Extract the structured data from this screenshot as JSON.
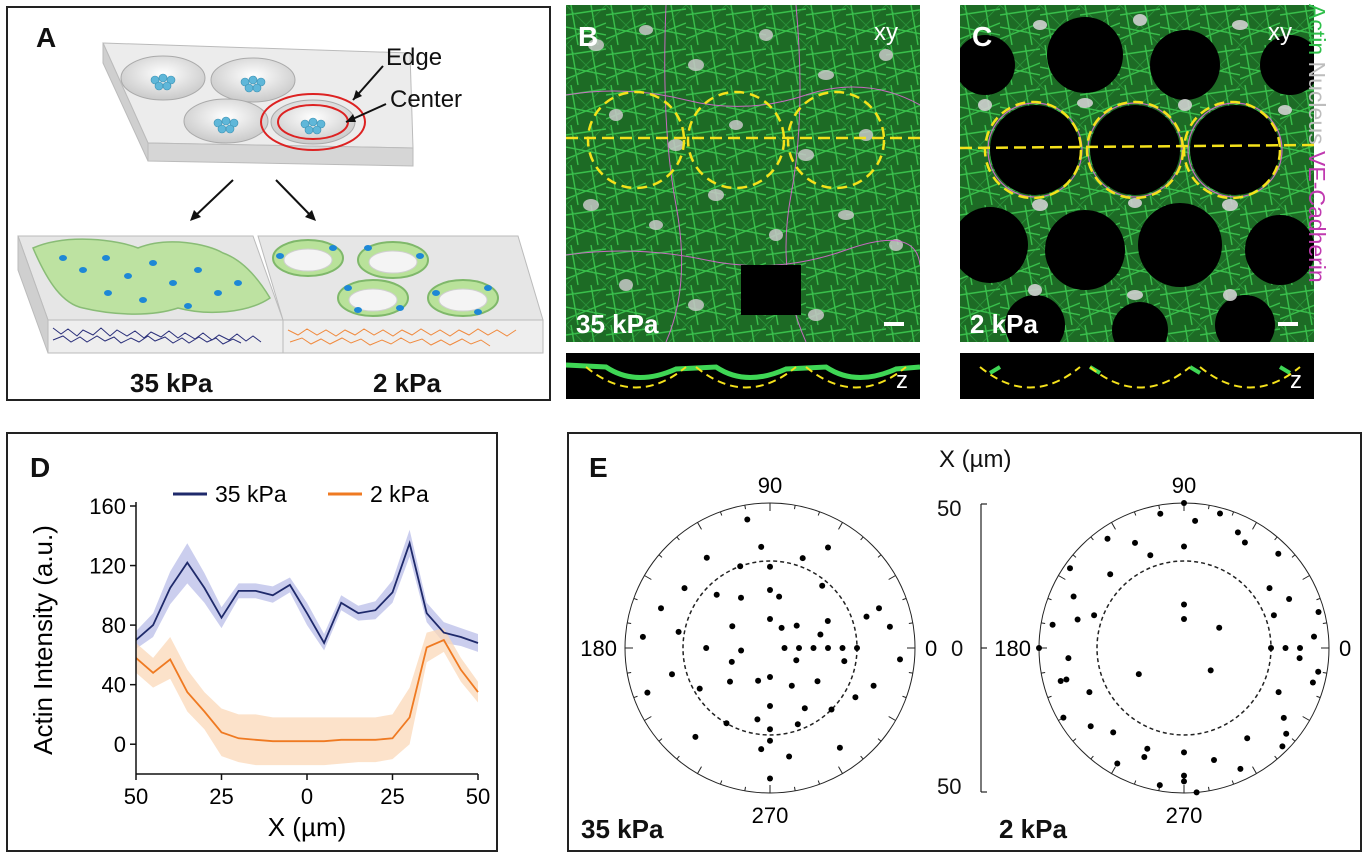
{
  "panel_a": {
    "letter": "A",
    "edge_label": "Edge",
    "center_label": "Center",
    "stiff_label": "35 kPa",
    "soft_label": "2 kPa"
  },
  "panel_b": {
    "letter": "B",
    "view_label": "xy",
    "stiffness_label": "35 kPa",
    "z_label": "z"
  },
  "panel_c": {
    "letter": "C",
    "view_label": "xy",
    "stiffness_label": "2 kPa",
    "z_label": "z"
  },
  "stain_legend": {
    "actin": "Actin",
    "nucleus": "Nucleus",
    "vecad": "VE-Cadherin",
    "actin_color": "#2fbf4a",
    "nucleus_color": "#bdbdbd",
    "vecad_color": "#c03ab0"
  },
  "panel_d": {
    "letter": "D"
  },
  "panel_e": {
    "letter": "E",
    "x_unit_label": "X (µm)",
    "left_label": "35 kPa",
    "right_label": "2 kPa",
    "scale_top": "50",
    "scale_mid": "0",
    "scale_bottom": "50"
  },
  "chart_data": [
    {
      "type": "line",
      "title": "",
      "xlabel": "X (µm)",
      "ylabel": "Actin Intensity (a.u.)",
      "x_tick_labels": [
        "50",
        "25",
        "0",
        "25",
        "50"
      ],
      "y_ticks": [
        0,
        40,
        80,
        120,
        160
      ],
      "ylim": [
        -20,
        160
      ],
      "xlim": [
        -50,
        50
      ],
      "legend": "top",
      "x": [
        -50,
        -45,
        -40,
        -35,
        -30,
        -25,
        -20,
        -15,
        -10,
        -5,
        0,
        5,
        10,
        15,
        20,
        25,
        30,
        35,
        40,
        45,
        50
      ],
      "series": [
        {
          "name": "35 kPa",
          "color": "#1f2a6b",
          "band_color": "#b9bde8",
          "values": [
            70,
            80,
            105,
            122,
            105,
            85,
            103,
            103,
            100,
            107,
            88,
            68,
            95,
            88,
            90,
            102,
            135,
            88,
            75,
            72,
            68
          ],
          "lower": [
            64,
            72,
            94,
            108,
            95,
            78,
            98,
            98,
            95,
            102,
            80,
            63,
            90,
            83,
            84,
            95,
            126,
            82,
            68,
            66,
            62
          ],
          "upper": [
            76,
            88,
            116,
            135,
            115,
            92,
            108,
            108,
            106,
            112,
            95,
            74,
            100,
            93,
            96,
            110,
            144,
            95,
            82,
            78,
            74
          ]
        },
        {
          "name": "2 kPa",
          "color": "#ef7a22",
          "band_color": "#fbd8b8",
          "values": [
            58,
            48,
            57,
            35,
            22,
            8,
            4,
            3,
            2,
            2,
            2,
            2,
            3,
            3,
            3,
            4,
            18,
            65,
            70,
            50,
            35
          ],
          "lower": [
            48,
            38,
            44,
            22,
            10,
            -8,
            -12,
            -14,
            -14,
            -14,
            -14,
            -14,
            -13,
            -12,
            -12,
            -10,
            0,
            55,
            62,
            42,
            28
          ],
          "upper": [
            68,
            58,
            72,
            50,
            35,
            24,
            20,
            20,
            18,
            18,
            18,
            18,
            18,
            18,
            18,
            20,
            38,
            75,
            78,
            58,
            42
          ]
        }
      ]
    },
    {
      "type": "scatter",
      "subtype": "polar",
      "title": "35 kPa",
      "angle_labels": [
        "90",
        "180",
        "0",
        "270"
      ],
      "radius_range_um": [
        0,
        50
      ],
      "reference_circle_radius_um": 30,
      "points_r_theta": [
        [
          30,
          0
        ],
        [
          25,
          0
        ],
        [
          20,
          0
        ],
        [
          15,
          0
        ],
        [
          10,
          0
        ],
        [
          5,
          0
        ],
        [
          42,
          10
        ],
        [
          35,
          18
        ],
        [
          22,
          25
        ],
        [
          12,
          40
        ],
        [
          28,
          50
        ],
        [
          40,
          60
        ],
        [
          33,
          70
        ],
        [
          18,
          80
        ],
        [
          10,
          90
        ],
        [
          20,
          90
        ],
        [
          28,
          90
        ],
        [
          35,
          95
        ],
        [
          45,
          100
        ],
        [
          30,
          110
        ],
        [
          20,
          120
        ],
        [
          38,
          125
        ],
        [
          26,
          135
        ],
        [
          15,
          150
        ],
        [
          40,
          160
        ],
        [
          32,
          170
        ],
        [
          22,
          180
        ],
        [
          10,
          185
        ],
        [
          35,
          195
        ],
        [
          45,
          200
        ],
        [
          28,
          210
        ],
        [
          18,
          220
        ],
        [
          40,
          230
        ],
        [
          30,
          240
        ],
        [
          12,
          250
        ],
        [
          25,
          260
        ],
        [
          35,
          265
        ],
        [
          10,
          270
        ],
        [
          20,
          270
        ],
        [
          28,
          270
        ],
        [
          32,
          270
        ],
        [
          45,
          270
        ],
        [
          38,
          280
        ],
        [
          28,
          290
        ],
        [
          15,
          300
        ],
        [
          42,
          305
        ],
        [
          30,
          315
        ],
        [
          20,
          325
        ],
        [
          10,
          335
        ],
        [
          38,
          340
        ],
        [
          26,
          350
        ],
        [
          45,
          355
        ],
        [
          18,
          15
        ],
        [
          8,
          60
        ],
        [
          36,
          145
        ],
        [
          44,
          175
        ],
        [
          14,
          200
        ],
        [
          24,
          300
        ],
        [
          34,
          330
        ],
        [
          40,
          20
        ]
      ]
    },
    {
      "type": "scatter",
      "subtype": "polar",
      "title": "2 kPa",
      "angle_labels": [
        "90",
        "180",
        "0",
        "270"
      ],
      "radius_range_um": [
        0,
        50
      ],
      "reference_circle_radius_um": 30,
      "points_r_theta": [
        [
          30,
          0
        ],
        [
          35,
          0
        ],
        [
          40,
          0
        ],
        [
          45,
          5
        ],
        [
          48,
          15
        ],
        [
          40,
          25
        ],
        [
          36,
          35
        ],
        [
          46,
          45
        ],
        [
          42,
          60
        ],
        [
          48,
          75
        ],
        [
          44,
          85
        ],
        [
          50,
          90
        ],
        [
          35,
          90
        ],
        [
          47,
          100
        ],
        [
          40,
          115
        ],
        [
          46,
          125
        ],
        [
          36,
          135
        ],
        [
          48,
          145
        ],
        [
          42,
          155
        ],
        [
          38,
          165
        ],
        [
          46,
          170
        ],
        [
          50,
          180
        ],
        [
          40,
          185
        ],
        [
          44,
          195
        ],
        [
          36,
          205
        ],
        [
          48,
          210
        ],
        [
          42,
          220
        ],
        [
          38,
          230
        ],
        [
          46,
          240
        ],
        [
          40,
          250
        ],
        [
          48,
          260
        ],
        [
          36,
          270
        ],
        [
          44,
          270
        ],
        [
          46,
          270
        ],
        [
          50,
          275
        ],
        [
          40,
          285
        ],
        [
          46,
          295
        ],
        [
          38,
          305
        ],
        [
          48,
          315
        ],
        [
          42,
          325
        ],
        [
          36,
          335
        ],
        [
          46,
          345
        ],
        [
          40,
          355
        ],
        [
          15,
          90
        ],
        [
          10,
          90
        ],
        [
          12,
          320
        ],
        [
          18,
          210
        ],
        [
          14,
          30
        ],
        [
          44,
          65
        ],
        [
          34,
          110
        ],
        [
          42,
          195
        ],
        [
          46,
          320
        ],
        [
          33,
          20
        ],
        [
          37,
          250
        ],
        [
          47,
          350
        ],
        [
          33,
          160
        ]
      ]
    }
  ]
}
